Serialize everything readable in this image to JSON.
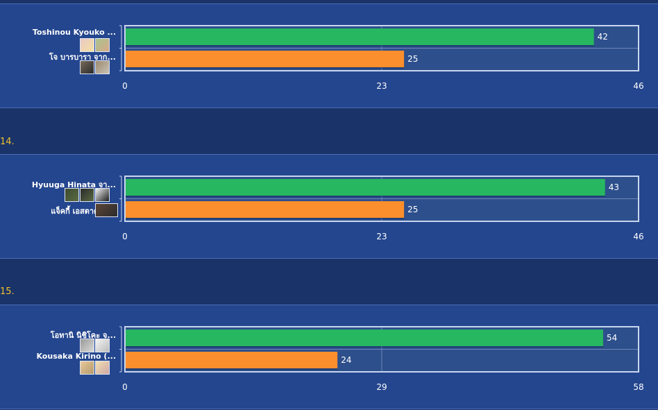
{
  "chart_data": [
    {
      "type": "bar",
      "categories": [
        "Toshinou Kyouko ...",
        "โจ บารบารา จาก..."
      ],
      "values": [
        42,
        25
      ],
      "colors": [
        "#27b761",
        "#fb8e2d"
      ],
      "xlim": [
        0,
        46
      ],
      "ticks": [
        "0",
        "23",
        "46"
      ]
    },
    {
      "type": "bar",
      "rank": "14.",
      "categories": [
        "Hyuuga Hinata จา...",
        "แจ็คกี้ เอสตาคาโ..."
      ],
      "values": [
        43,
        25
      ],
      "colors": [
        "#27b761",
        "#fb8e2d"
      ],
      "xlim": [
        0,
        46
      ],
      "ticks": [
        "0",
        "23",
        "46"
      ]
    },
    {
      "type": "bar",
      "rank": "15.",
      "categories": [
        "โอทานิ นิชิโคะ จ...",
        "Kousaka Kirino (..."
      ],
      "values": [
        54,
        24
      ],
      "colors": [
        "#27b761",
        "#fb8e2d"
      ],
      "xlim": [
        0,
        58
      ],
      "ticks": [
        "0",
        "29",
        "58"
      ]
    }
  ],
  "avatar_colors": [
    [
      "#e9c8c4",
      "#f3e1a2",
      "#a8c48d",
      "#d7a88a"
    ],
    [
      "#7a6a5a",
      "#2a2a2a",
      "#9c8a70",
      "#c9c2b4"
    ],
    [
      "#3d4a2f",
      "#5a6b43",
      "#f2f2f2",
      "#1b1b1b"
    ],
    [
      "#5b4536",
      "#2c2c2c"
    ],
    [
      "#9a9a9a",
      "#d9d9d9",
      "#f4f4f4",
      "#bbbbbb"
    ],
    [
      "#e7c99b",
      "#b69a6a",
      "#f0e0b0",
      "#cfa6a6"
    ]
  ]
}
